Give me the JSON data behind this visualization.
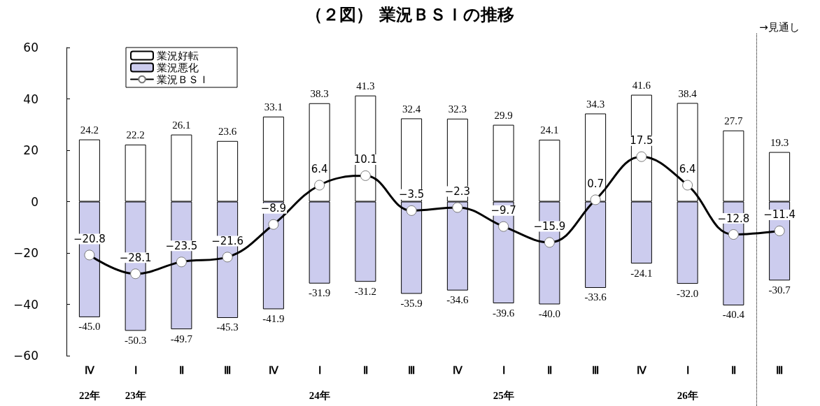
{
  "chart_data": {
    "type": "bar",
    "title": "（２図） 業況ＢＳＩの推移",
    "categories": [
      "Ⅳ\n\n22年",
      "Ⅰ\n\n23年",
      "Ⅱ",
      "Ⅲ",
      "Ⅳ",
      "Ⅰ\n\n24年",
      "Ⅱ",
      "Ⅲ",
      "Ⅳ",
      "Ⅰ\n\n25年",
      "Ⅱ",
      "Ⅲ",
      "Ⅳ",
      "Ⅰ\n\n26年",
      "Ⅱ",
      "Ⅲ"
    ],
    "series": [
      {
        "name": "業況好転",
        "color": "#ffffff",
        "values": [
          24.2,
          22.2,
          26.1,
          23.6,
          33.1,
          38.3,
          41.3,
          32.4,
          32.3,
          29.9,
          24.1,
          34.3,
          41.6,
          38.4,
          27.7,
          19.3
        ],
        "value_labels": [
          "24.2",
          "22.2",
          "26.1",
          "23.6",
          "33.1",
          "38.3",
          "41.3",
          "32.4",
          "32.3",
          "29.9",
          "24.1",
          "34.3",
          "41.6",
          "38.4",
          "27.7",
          "19.3"
        ]
      },
      {
        "name": "業況悪化",
        "color": "#ccccee",
        "values": [
          -45.0,
          -50.3,
          -49.7,
          -45.3,
          -41.9,
          -31.9,
          -31.2,
          -35.9,
          -34.6,
          -39.6,
          -40.0,
          -33.6,
          -24.1,
          -32.0,
          -40.4,
          -30.7
        ],
        "value_labels": [
          "-45.0",
          "-50.3",
          "-49.7",
          "-45.3",
          "-41.9",
          "-31.9",
          "-31.2",
          "-35.9",
          "-34.6",
          "-39.6",
          "-40.0",
          "-33.6",
          "-24.1",
          "-32.0",
          "-40.4",
          "-30.7"
        ]
      },
      {
        "name": "業況ＢＳＩ",
        "type": "line",
        "color": "#000000",
        "marker": "circle",
        "values": [
          -20.8,
          -28.1,
          -23.5,
          -21.6,
          -8.9,
          6.4,
          10.1,
          -3.5,
          -2.3,
          -9.7,
          -15.9,
          0.7,
          17.5,
          6.4,
          -12.8,
          -11.4
        ],
        "value_labels": [
          "−20.8",
          "−28.1",
          "−23.5",
          "−21.6",
          "−8.9",
          "6.4",
          "10.1",
          "−3.5",
          "−2.3",
          "−9.7",
          "−15.9",
          "0.7",
          "17.5",
          "6.4",
          "−12.8",
          "−11.4"
        ]
      }
    ],
    "stacked": true,
    "ylim": [
      -60,
      60
    ],
    "yticks": [
      -60,
      -40,
      -20,
      0,
      20,
      40,
      60
    ],
    "legend": "top left",
    "annotations": [
      "→見通し"
    ]
  }
}
